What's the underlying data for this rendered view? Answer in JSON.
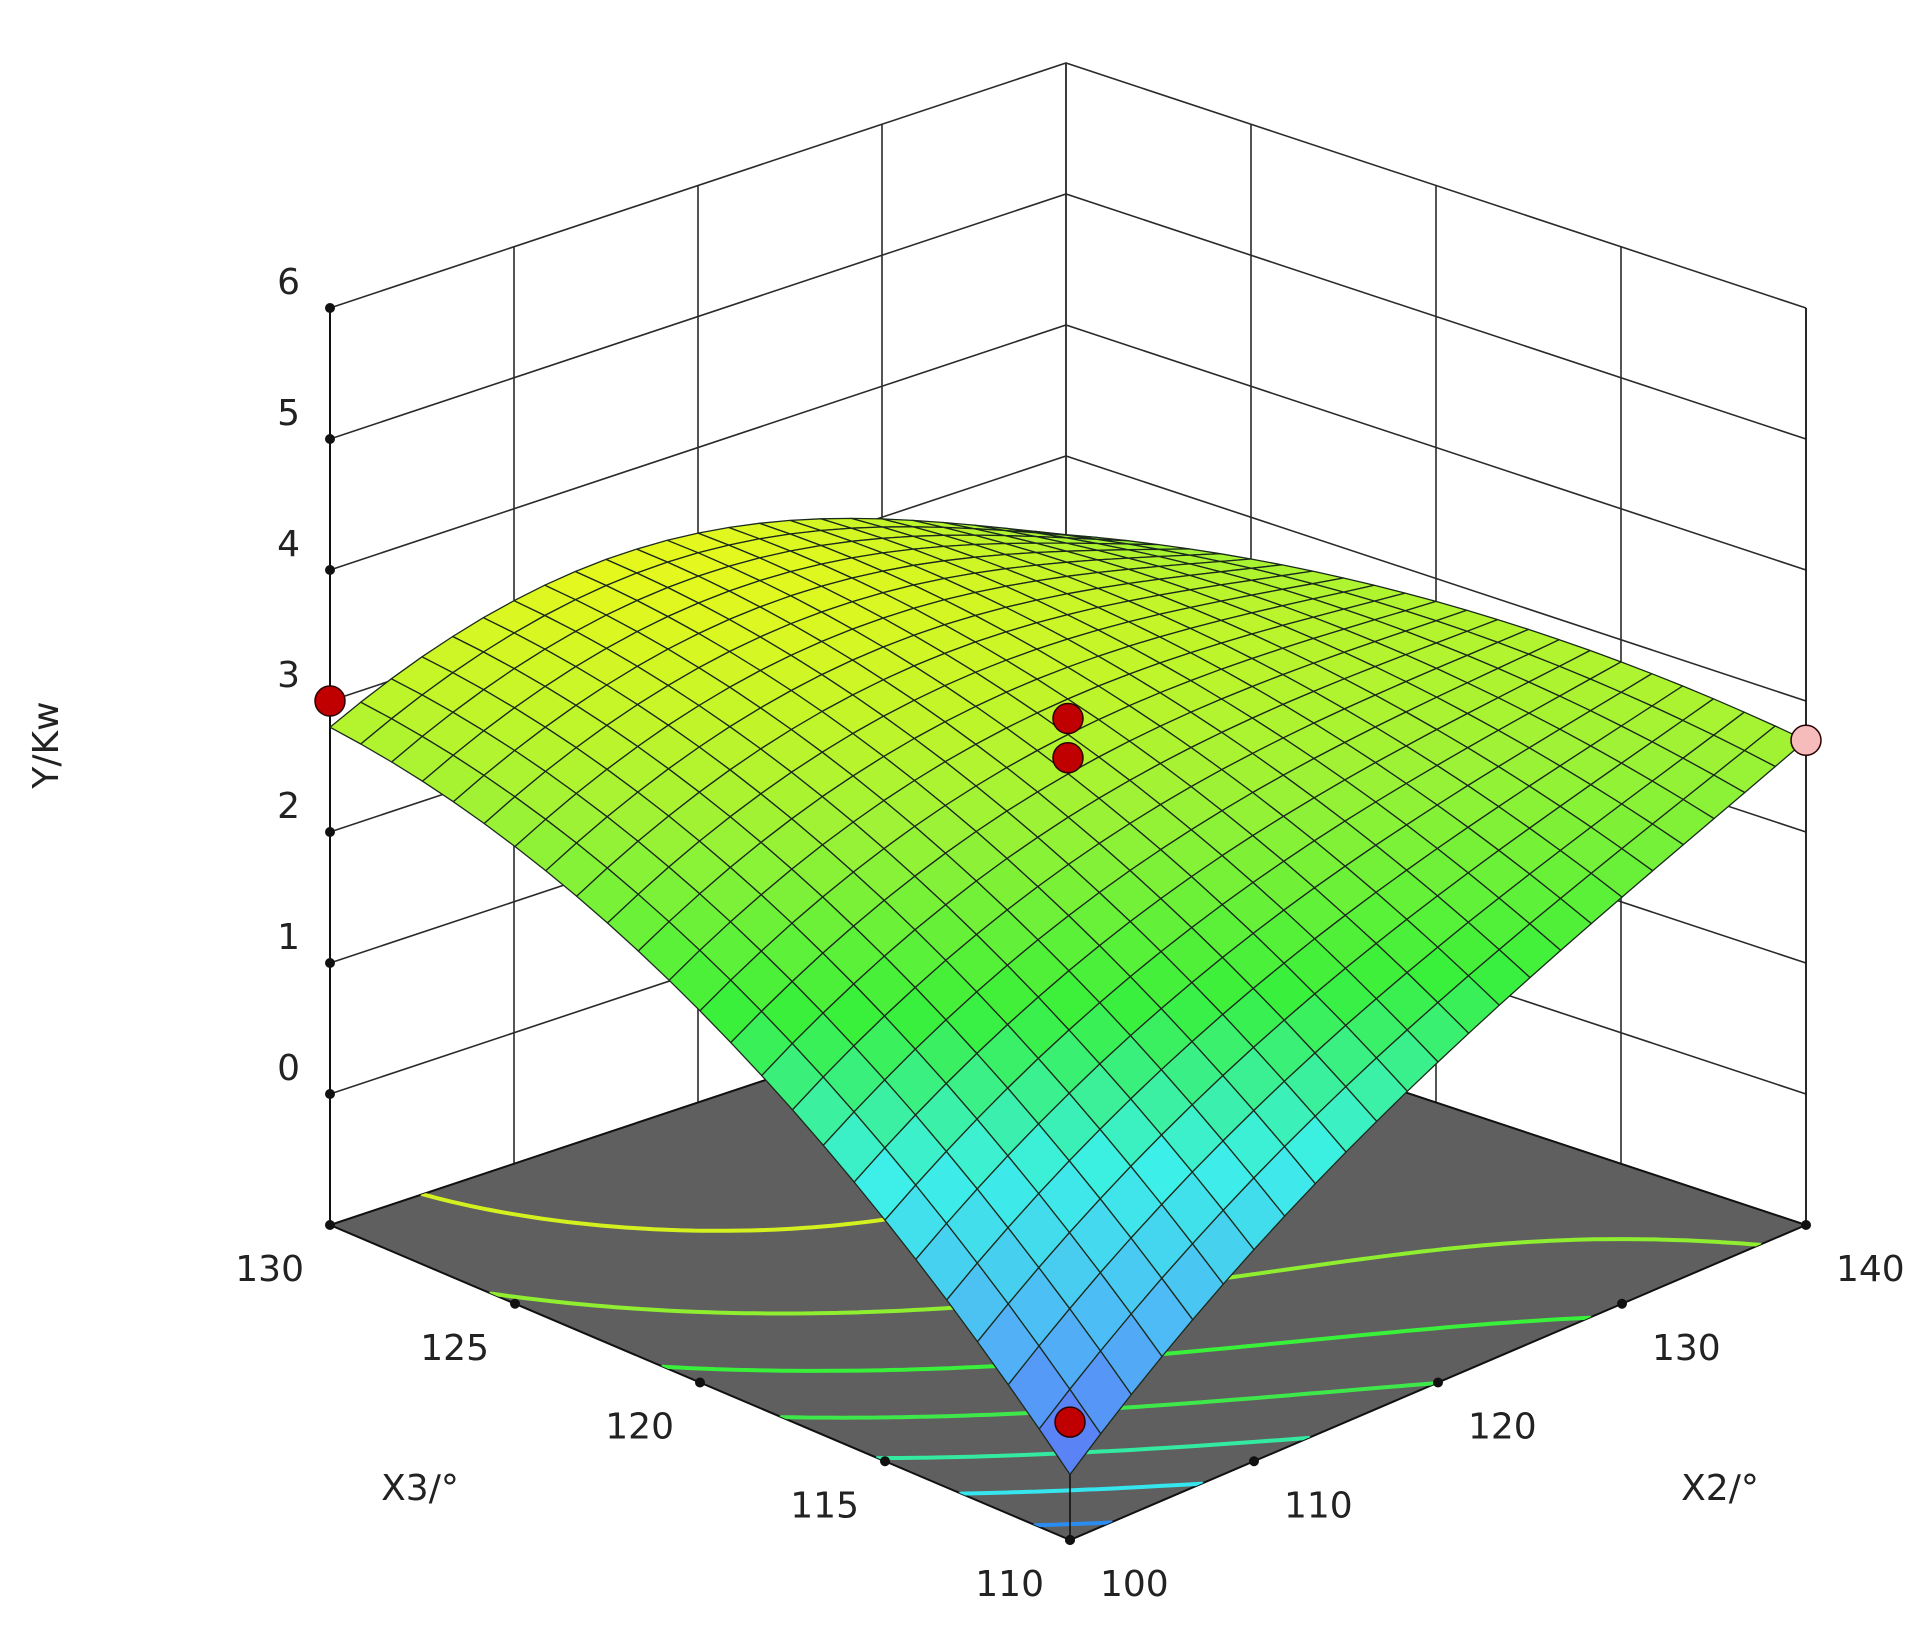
{
  "chart_data": {
    "type": "surface3d",
    "title": "",
    "zlabel": "Y/Kw",
    "xlabel": "X3/°",
    "ylabel": "X2/°",
    "zlim": [
      -1,
      6
    ],
    "z_ticks": [
      "0",
      "1",
      "2",
      "3",
      "4",
      "5",
      "6"
    ],
    "x3_range": [
      110,
      130
    ],
    "x3_ticks": [
      "110",
      "115",
      "120",
      "125",
      "130"
    ],
    "x2_range": [
      100,
      140
    ],
    "x2_ticks": [
      "100",
      "110",
      "120",
      "130",
      "140"
    ],
    "grid": true,
    "floor_color": "#5f5f5f",
    "surface_color_scale": [
      "#5f6df5",
      "#4fb8f6",
      "#3cf0e8",
      "#39f03a",
      "#9cf236",
      "#e6f81e"
    ],
    "surface_corners": [
      {
        "x3": 110,
        "x2": 100,
        "y": -0.5
      },
      {
        "x3": 130,
        "x2": 100,
        "y": 2.8
      },
      {
        "x3": 110,
        "x2": 140,
        "y": 2.7
      },
      {
        "x3": 130,
        "x2": 140,
        "y": 2.4
      }
    ],
    "design_points": [
      {
        "x3": 130,
        "x2": 100,
        "y": 3.0,
        "color": "#c00000"
      },
      {
        "x3": 120,
        "x2": 120,
        "y": 3.0,
        "color": "#c00000"
      },
      {
        "x3": 120,
        "x2": 120,
        "y": 2.7,
        "color": "#c00000"
      },
      {
        "x3": 110,
        "x2": 100,
        "y": -0.1,
        "color": "#c00000"
      },
      {
        "x3": 110,
        "x2": 140,
        "y": 2.7,
        "color": "#f6bcbc"
      }
    ],
    "contour_colors": [
      "#2b8cf0",
      "#36e6ee",
      "#34e9a0",
      "#3ee84a",
      "#39f03a",
      "#8fee30",
      "#d4f01f"
    ]
  }
}
